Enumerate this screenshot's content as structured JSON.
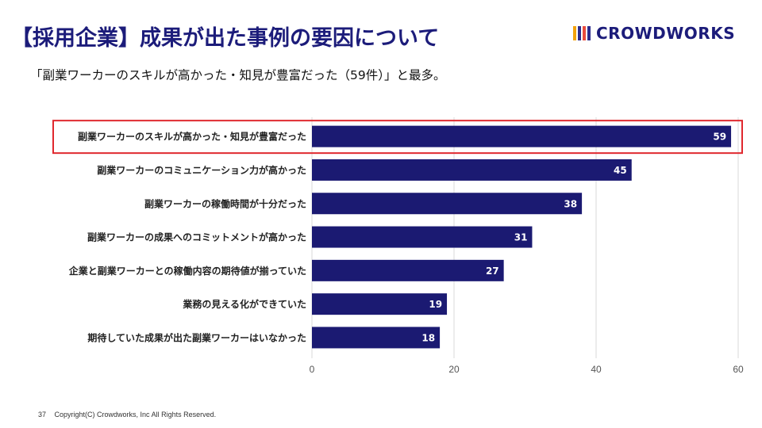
{
  "header": {
    "title": "【採用企業】成果が出た事例の要因について",
    "subtitle": "「副業ワーカーのスキルが高かった・知見が豊富だった（59件）」と最多。"
  },
  "logo": {
    "text": "CROWDWORKS",
    "mark_colors": [
      "#f2a20c",
      "#2b2b8c",
      "#e94b3c",
      "#2b2b8c"
    ]
  },
  "chart_data": {
    "type": "bar",
    "orientation": "horizontal",
    "title": "",
    "categories": [
      "副業ワーカーのスキルが高かった・知見が豊富だった",
      "副業ワーカーのコミュニケーション力が高かった",
      "副業ワーカーの稼働時間が十分だった",
      "副業ワーカーの成果へのコミットメントが高かった",
      "企業と副業ワーカーとの稼働内容の期待値が揃っていた",
      "業務の見える化ができていた",
      "期待していた成果が出た副業ワーカーはいなかった"
    ],
    "values": [
      59,
      45,
      38,
      31,
      27,
      19,
      18
    ],
    "xlim": [
      0,
      60
    ],
    "xticks": [
      0,
      20,
      40,
      60
    ],
    "xlabel": "",
    "ylabel": "",
    "grid": true,
    "highlight_index": 0,
    "bar_color": "#1b1a72",
    "highlight_color": "#e0282e",
    "grid_color": "#d9d9d9"
  },
  "footer": {
    "page_number": "37",
    "copyright": "Copyright(C) Crowdworks, Inc All Rights Reserved."
  }
}
